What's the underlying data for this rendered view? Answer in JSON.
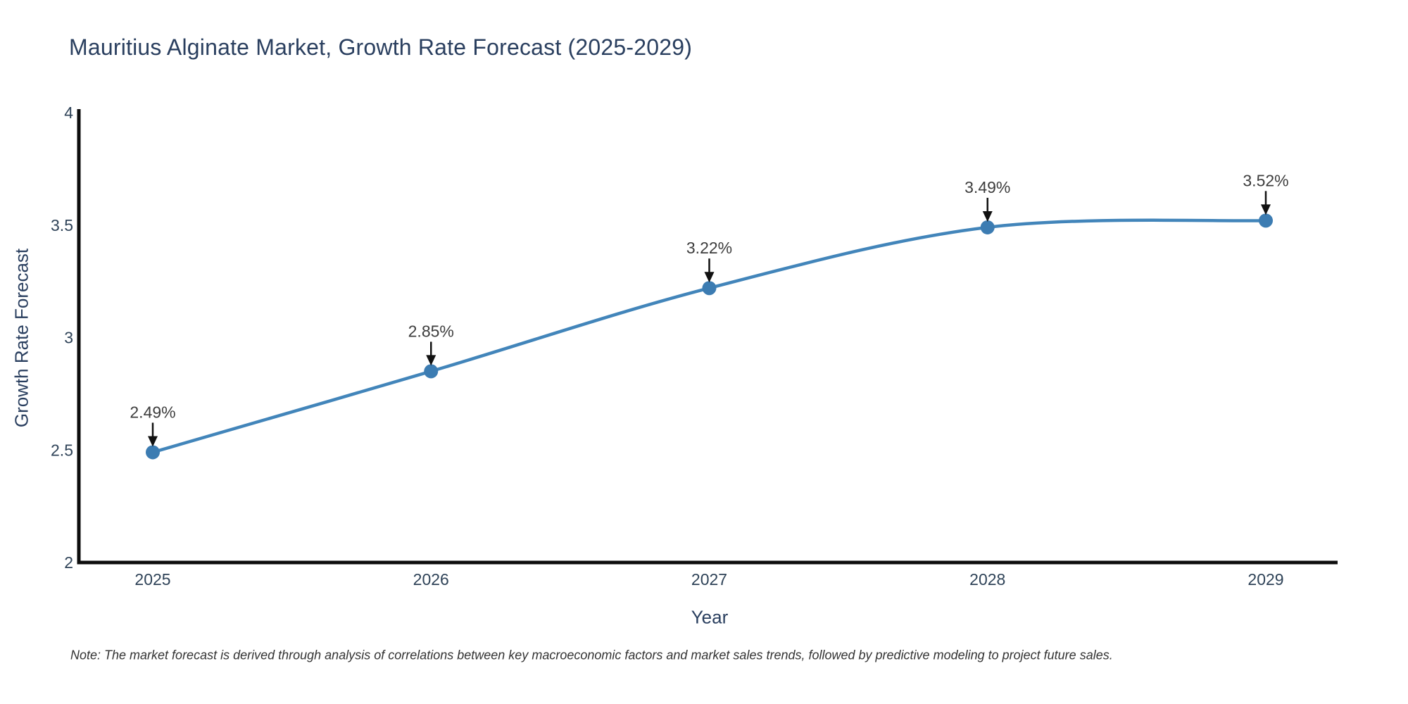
{
  "title": "Mauritius Alginate Market, Growth Rate Forecast (2025-2029)",
  "note": "Note: The market forecast is derived through analysis of correlations between key macroeconomic factors and market sales trends, followed by predictive modeling to project future sales.",
  "chart_data": {
    "type": "line",
    "line_shape": "spline",
    "categories": [
      "2025",
      "2026",
      "2027",
      "2028",
      "2029"
    ],
    "x": [
      2025,
      2026,
      2027,
      2028,
      2029
    ],
    "values": [
      2.49,
      2.85,
      3.22,
      3.49,
      3.52
    ],
    "point_labels": [
      "2.49%",
      "2.85%",
      "3.22%",
      "3.49%",
      "3.52%"
    ],
    "title": "Mauritius Alginate Market, Growth Rate Forecast (2025-2029)",
    "xlabel": "Year",
    "ylabel": "Growth Rate Forecast",
    "ylim": [
      2,
      4
    ],
    "yticks": [
      2,
      2.5,
      3,
      3.5,
      4
    ],
    "ytick_labels": [
      "2",
      "2.5",
      "3",
      "3.5",
      "4"
    ],
    "grid": false,
    "legend": "none",
    "markers": true,
    "annotations_with_arrows": true
  },
  "colors": {
    "background": "#ffffff",
    "line": "#4285ba",
    "marker": "#3c7cb2",
    "axis": "#0d0d0d",
    "title_text": "#2a3f5f",
    "tick_text": "#2f4358",
    "axis_label_text": "#2a3f5f",
    "annotation_text": "#3d3d3d",
    "arrow": "#111111",
    "note_text": "#333333"
  }
}
